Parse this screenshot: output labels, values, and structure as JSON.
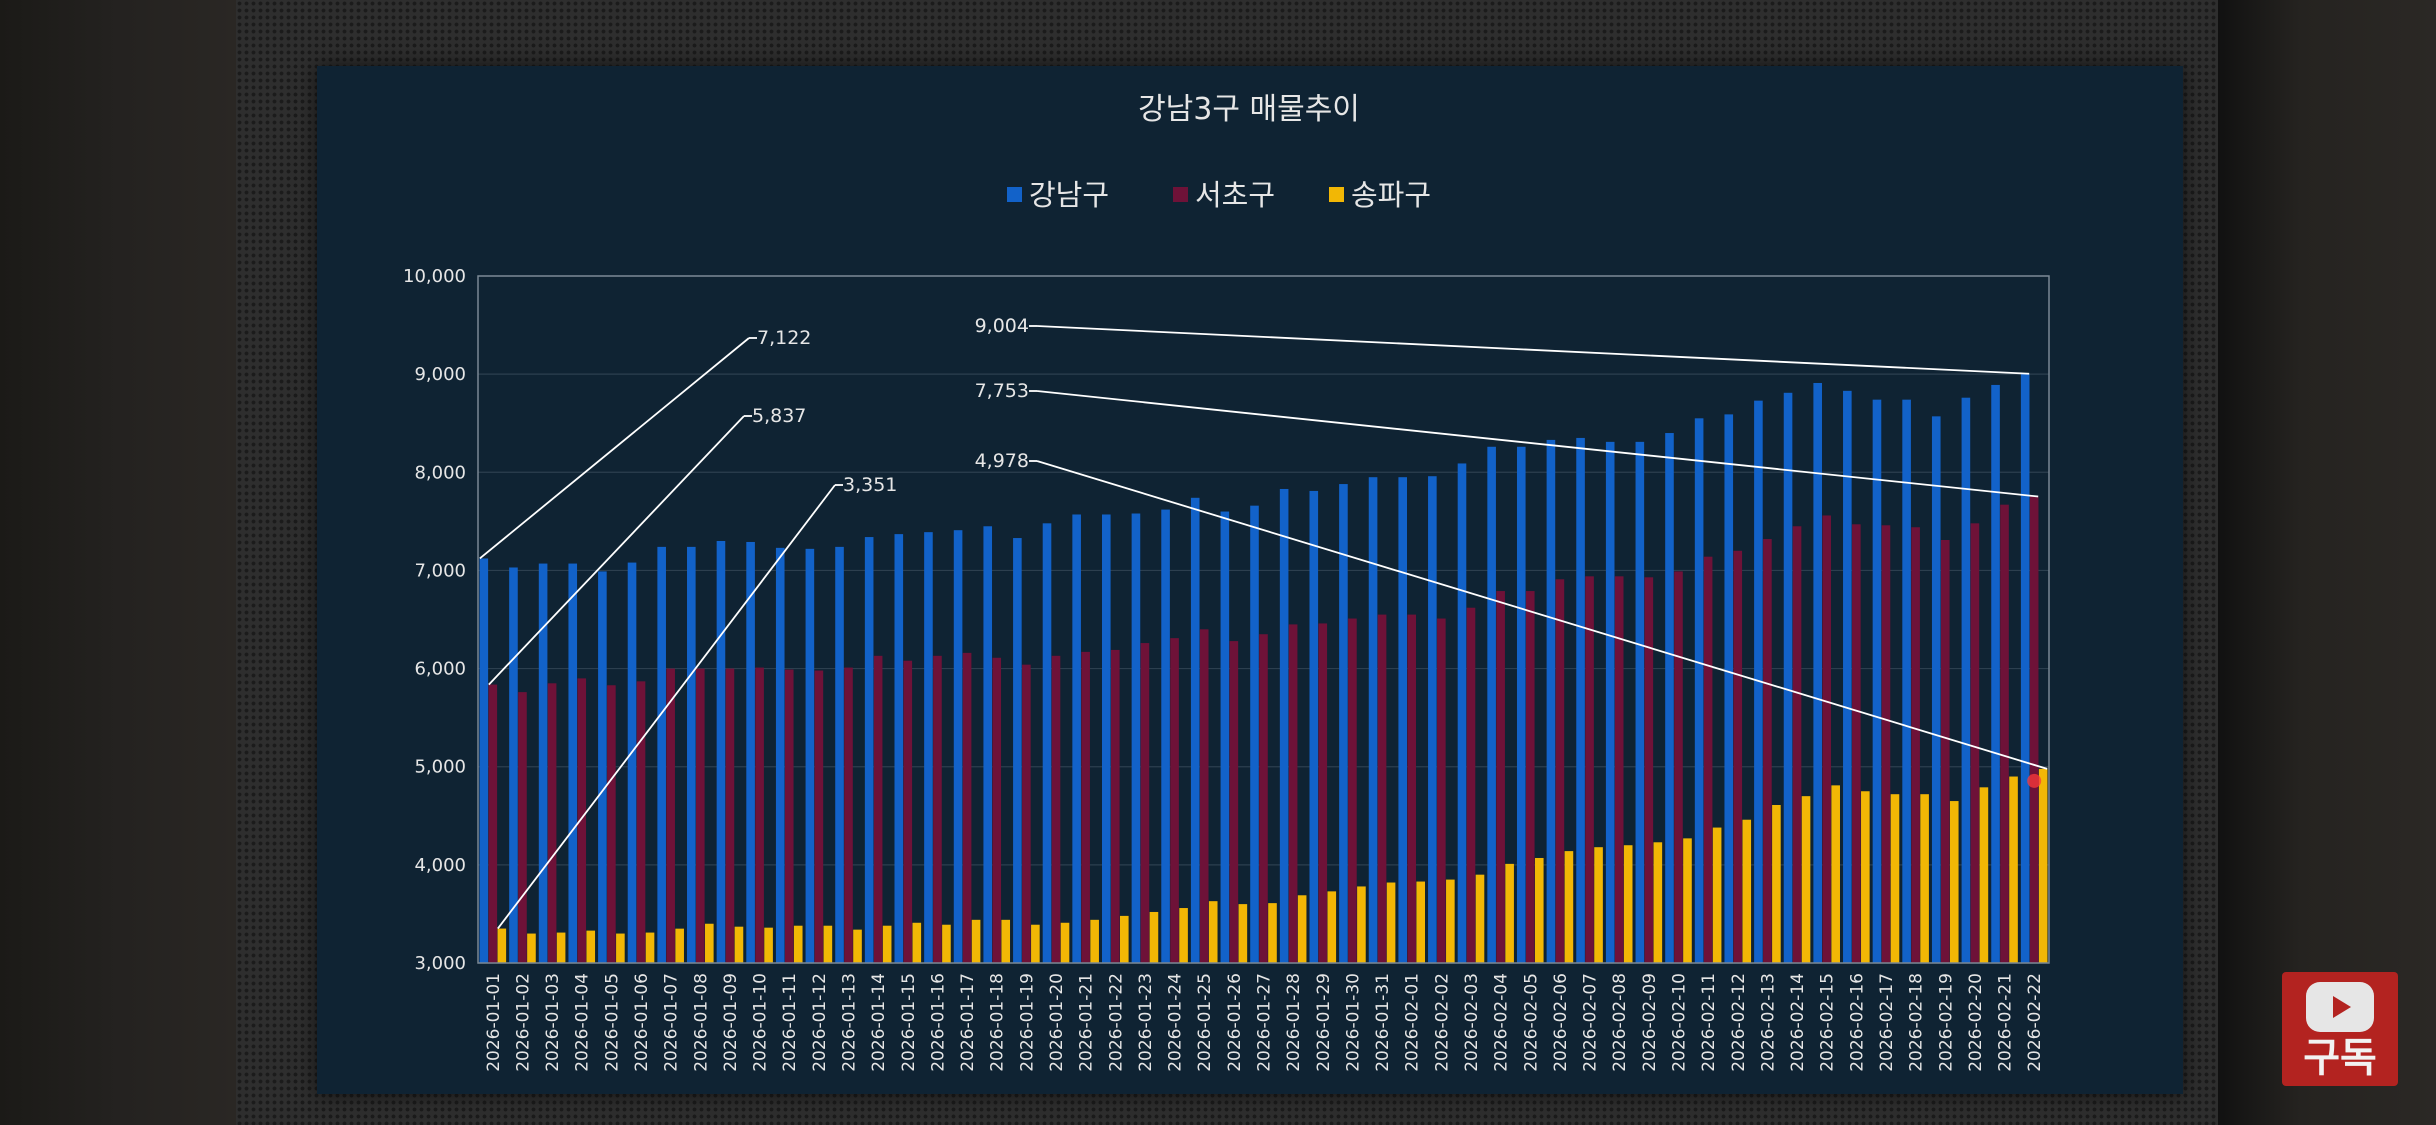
{
  "subscribe": {
    "label": "구독"
  },
  "colors": {
    "panel_bg": "#0f2333",
    "gangnam": "#1262c9",
    "seocho": "#6e1238",
    "songpa": "#f2b705",
    "text": "#e6e6e6",
    "grid": "#2c3f4f",
    "callout": "#ffffff"
  },
  "chart_data": {
    "type": "bar",
    "title": "강남3구 매물추이",
    "xlabel": "",
    "ylabel": "",
    "ylim": [
      3000,
      10000
    ],
    "yticks": [
      3000,
      4000,
      5000,
      6000,
      7000,
      8000,
      9000,
      10000
    ],
    "ytick_labels": [
      "3,000",
      "4,000",
      "5,000",
      "6,000",
      "7,000",
      "8,000",
      "9,000",
      "10,000"
    ],
    "legend_position": "top-center",
    "categories": [
      "2026-01-01",
      "2026-01-02",
      "2026-01-03",
      "2026-01-04",
      "2026-01-05",
      "2026-01-06",
      "2026-01-07",
      "2026-01-08",
      "2026-01-09",
      "2026-01-10",
      "2026-01-11",
      "2026-01-12",
      "2026-01-13",
      "2026-01-14",
      "2026-01-15",
      "2026-01-16",
      "2026-01-17",
      "2026-01-18",
      "2026-01-19",
      "2026-01-20",
      "2026-01-21",
      "2026-01-22",
      "2026-01-23",
      "2026-01-24",
      "2026-01-25",
      "2026-01-26",
      "2026-01-27",
      "2026-01-28",
      "2026-01-29",
      "2026-01-30",
      "2026-01-31",
      "2026-02-01",
      "2026-02-02",
      "2026-02-03",
      "2026-02-04",
      "2026-02-05",
      "2026-02-06",
      "2026-02-07",
      "2026-02-08",
      "2026-02-09",
      "2026-02-10",
      "2026-02-11",
      "2026-02-12",
      "2026-02-13",
      "2026-02-14",
      "2026-02-15",
      "2026-02-16",
      "2026-02-17",
      "2026-02-18",
      "2026-02-19",
      "2026-02-20",
      "2026-02-21",
      "2026-02-22"
    ],
    "series": [
      {
        "name": "강남구",
        "values": [
          7122,
          7030,
          7070,
          7070,
          6990,
          7080,
          7240,
          7240,
          7300,
          7290,
          7230,
          7220,
          7240,
          7340,
          7370,
          7390,
          7410,
          7450,
          7330,
          7480,
          7570,
          7570,
          7580,
          7620,
          7740,
          7600,
          7660,
          7830,
          7810,
          7880,
          7950,
          7950,
          7960,
          8090,
          8260,
          8260,
          8330,
          8350,
          8310,
          8310,
          8400,
          8550,
          8590,
          8730,
          8810,
          8910,
          8830,
          8740,
          8740,
          8570,
          8760,
          8890,
          9004
        ]
      },
      {
        "name": "서초구",
        "values": [
          5837,
          5760,
          5850,
          5900,
          5830,
          5870,
          6000,
          6000,
          6000,
          6010,
          5990,
          5980,
          6010,
          6130,
          6080,
          6130,
          6160,
          6110,
          6040,
          6130,
          6170,
          6190,
          6260,
          6310,
          6400,
          6280,
          6350,
          6450,
          6460,
          6510,
          6550,
          6550,
          6510,
          6620,
          6790,
          6790,
          6910,
          6940,
          6940,
          6930,
          6990,
          7140,
          7200,
          7320,
          7450,
          7560,
          7470,
          7460,
          7440,
          7310,
          7480,
          7670,
          7753
        ]
      },
      {
        "name": "송파구",
        "values": [
          3351,
          3300,
          3310,
          3330,
          3300,
          3310,
          3350,
          3400,
          3370,
          3360,
          3380,
          3380,
          3340,
          3380,
          3410,
          3390,
          3440,
          3440,
          3390,
          3410,
          3440,
          3480,
          3520,
          3560,
          3630,
          3600,
          3610,
          3690,
          3730,
          3780,
          3820,
          3830,
          3850,
          3900,
          4010,
          4070,
          4140,
          4180,
          4200,
          4230,
          4270,
          4380,
          4460,
          4610,
          4700,
          4810,
          4750,
          4720,
          4720,
          4650,
          4790,
          4900,
          4978
        ]
      }
    ],
    "annotations": [
      {
        "label": "7,122",
        "series": 0,
        "index": 0
      },
      {
        "label": "5,837",
        "series": 1,
        "index": 0
      },
      {
        "label": "3,351",
        "series": 2,
        "index": 0
      },
      {
        "label": "9,004",
        "series": 0,
        "index": 52
      },
      {
        "label": "7,753",
        "series": 1,
        "index": 52
      },
      {
        "label": "4,978",
        "series": 2,
        "index": 52
      }
    ]
  }
}
